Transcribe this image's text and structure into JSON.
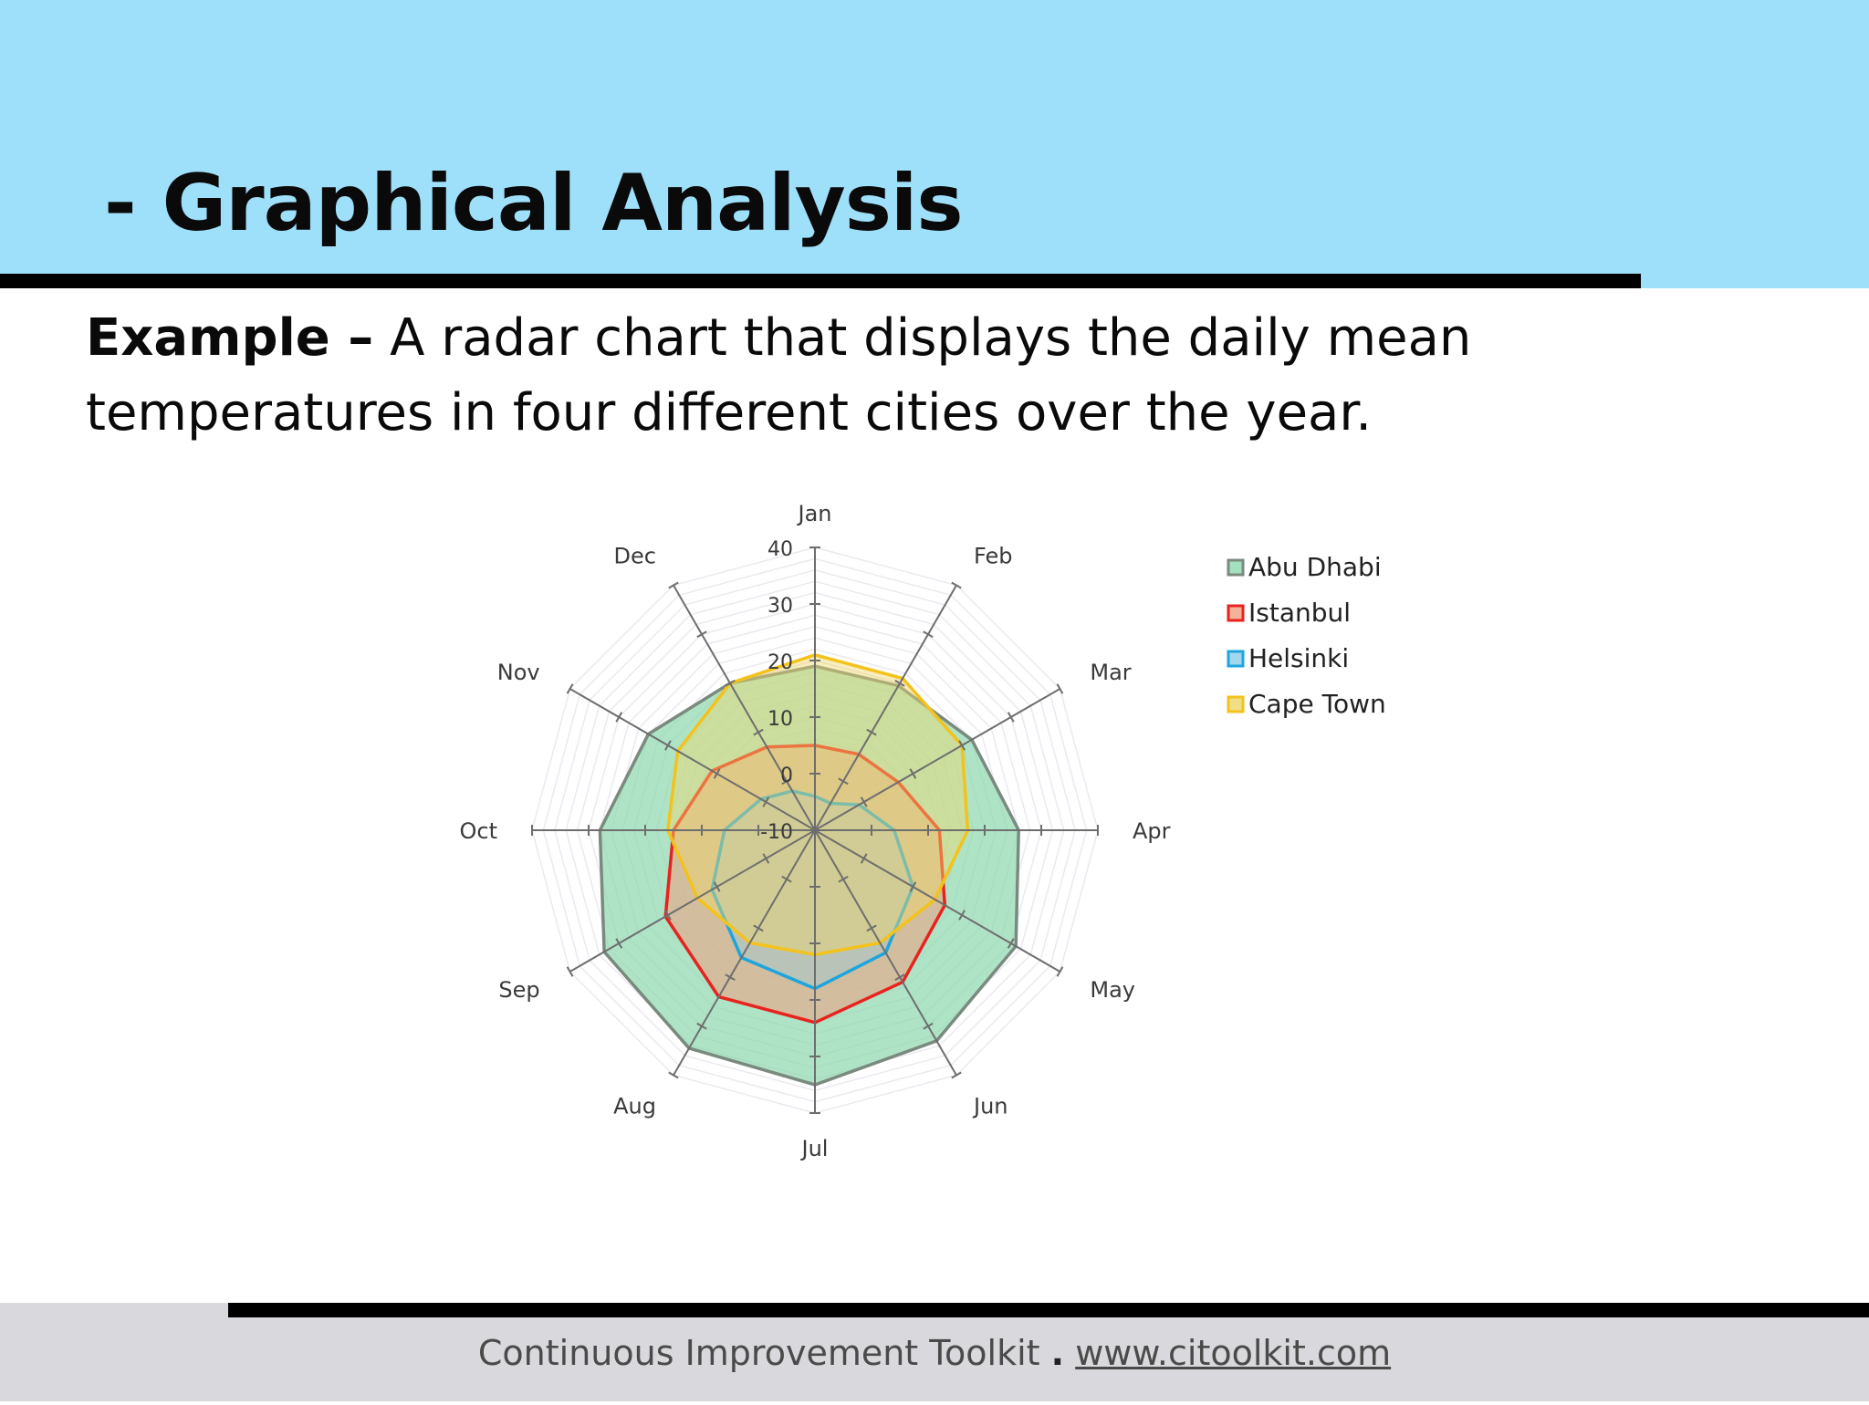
{
  "slide": {
    "title": "- Graphical Analysis",
    "intro_lead": "Example –",
    "intro_text": "A radar chart that displays the daily mean temperatures in four different cities over the year."
  },
  "footer": {
    "toolkit": "Continuous Improvement Toolkit",
    "separator": ".",
    "url": "www.citoolkit.com"
  },
  "chart_data": {
    "type": "radar",
    "categories": [
      "Jan",
      "Feb",
      "Mar",
      "Apr",
      "May",
      "Jun",
      "Jul",
      "Aug",
      "Sep",
      "Oct",
      "Nov",
      "Dec"
    ],
    "radial_ticks": [
      40,
      30,
      20,
      10,
      0,
      -10
    ],
    "rlim": [
      -10,
      40
    ],
    "legend_position": "right",
    "series": [
      {
        "name": "Abu Dhabi",
        "values": [
          19,
          19.5,
          22,
          26,
          31,
          33,
          35,
          34.5,
          33,
          28,
          24,
          20
        ],
        "line": "#7a8a7e",
        "fill": "#8fd8b0",
        "fill_opacity": 0.72
      },
      {
        "name": "Istanbul",
        "values": [
          5,
          5.5,
          7,
          12,
          16.5,
          21,
          24,
          24,
          20.5,
          15,
          11,
          7
        ],
        "line": "#e8231e",
        "fill": "#f0a080",
        "fill_opacity": 0.55
      },
      {
        "name": "Helsinki",
        "values": [
          -4,
          -4.5,
          -1,
          4,
          10,
          15,
          18,
          16,
          11,
          6,
          1,
          -2
        ],
        "line": "#1ea6dc",
        "fill": "#8ccde8",
        "fill_opacity": 0.35
      },
      {
        "name": "Cape Town",
        "values": [
          21,
          21,
          20,
          17,
          14.5,
          13,
          12,
          13,
          14,
          16,
          18,
          20
        ],
        "line": "#f3c21c",
        "fill": "#f0d66a",
        "fill_opacity": 0.45
      }
    ]
  }
}
